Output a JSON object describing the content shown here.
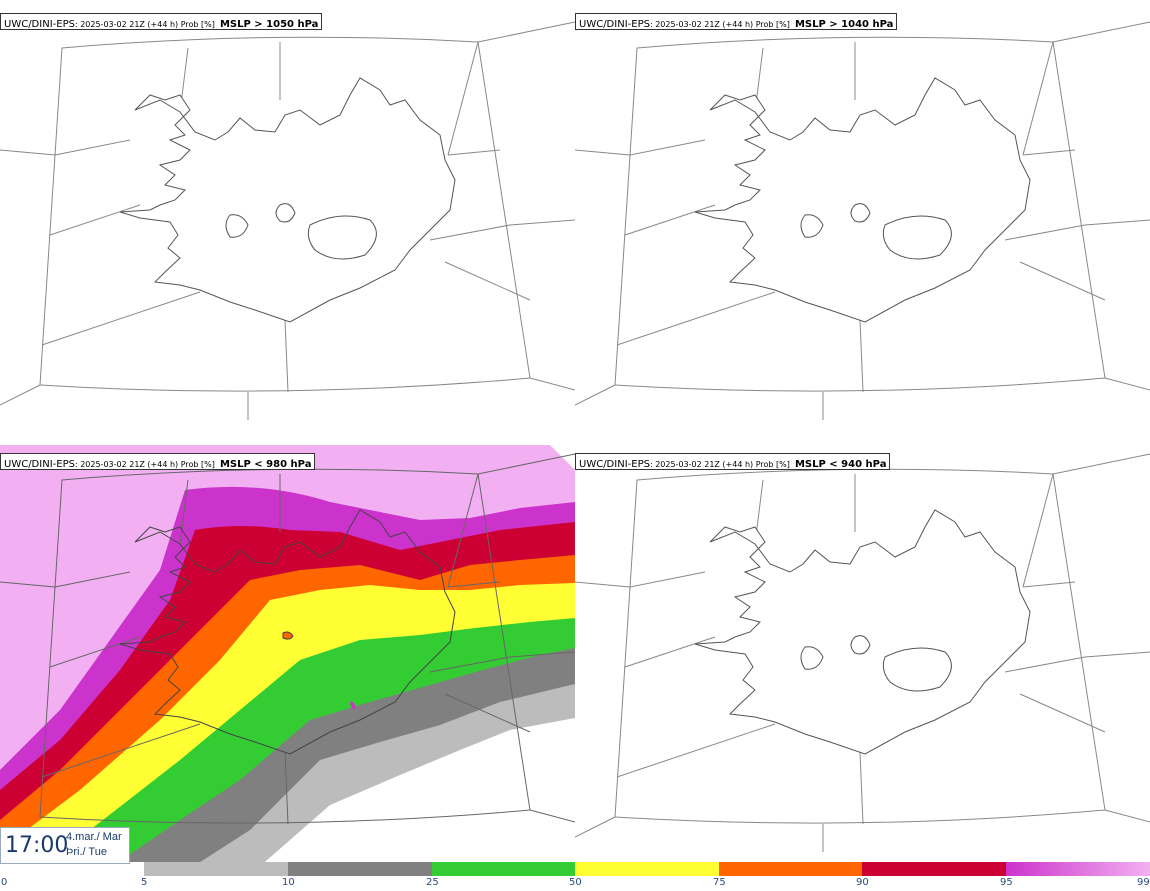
{
  "panels": [
    {
      "model": "UWC/DINI-EPS",
      "run": ": 2025-03-02 21Z (+44 h) Prob [%]",
      "param": "MSLP > 1050 hPa"
    },
    {
      "model": "UWC/DINI-EPS",
      "run": ": 2025-03-02 21Z (+44 h) Prob [%]",
      "param": "MSLP > 1040 hPa"
    },
    {
      "model": "UWC/DINI-EPS",
      "run": ": 2025-03-02 21Z (+44 h) Prob [%]",
      "param": "MSLP < 980 hPa"
    },
    {
      "model": "UWC/DINI-EPS",
      "run": ": 2025-03-02 21Z (+44 h) Prob [%]",
      "param": "MSLP < 940 hPa"
    }
  ],
  "valid_time": {
    "time": "17:00",
    "date_line1": "4.mar./ Mar",
    "date_line2": "Þri./ Tue"
  },
  "colorbar": {
    "ticks": [
      "0",
      "5",
      "10",
      "25",
      "50",
      "75",
      "90",
      "95",
      "99"
    ],
    "colors": [
      "#ffffff",
      "#bcbcbc",
      "#808080",
      "#33cc33",
      "#ffff33",
      "#ff6600",
      "#cc0033",
      "#cc33cc",
      "#f2b0f2"
    ]
  }
}
